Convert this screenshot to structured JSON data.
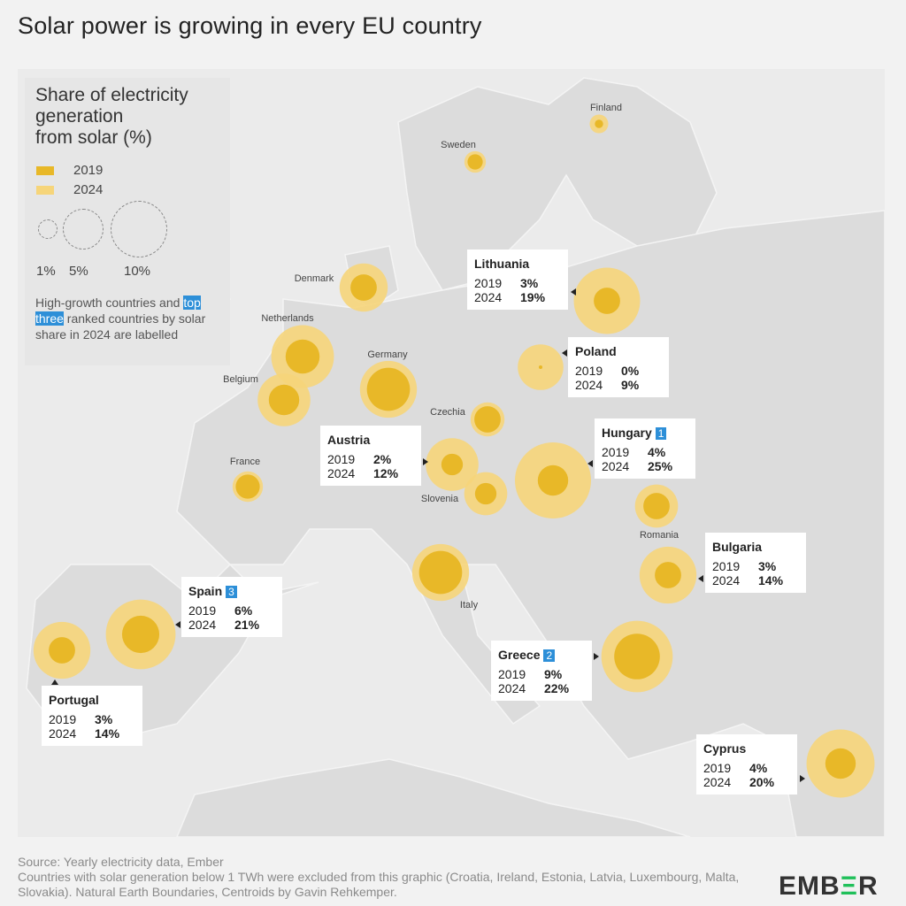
{
  "title": "Solar power is growing in every EU country",
  "legend": {
    "title_lines": [
      "Share of electricity",
      "generation",
      "from solar (%)"
    ],
    "year_2019": "2019",
    "year_2024": "2024",
    "size_labels": [
      "1%",
      "5%",
      "10%"
    ],
    "note_pre": "High-growth countries and",
    "note_highlight": "top three",
    "note_post": " ranked countries by solar share in 2024 are labelled"
  },
  "colors": {
    "c2019": "#e8b828",
    "c2024": "#f6d57a",
    "highlight": "#2d8fd8"
  },
  "chart_data": {
    "type": "bubble-map",
    "title": "Share of electricity generation from solar (%)",
    "countries": [
      {
        "name": "Finland",
        "v2019": 0.3,
        "v2024": 1.5
      },
      {
        "name": "Sweden",
        "v2019": 1,
        "v2024": 2
      },
      {
        "name": "Denmark",
        "v2019": 3,
        "v2024": 10
      },
      {
        "name": "Netherlands",
        "v2019": 5,
        "v2024": 17
      },
      {
        "name": "Belgium",
        "v2019": 4,
        "v2024": 12
      },
      {
        "name": "Germany",
        "v2019": 8,
        "v2024": 14
      },
      {
        "name": "Czechia",
        "v2019": 3,
        "v2024": 5
      },
      {
        "name": "France",
        "v2019": 2.5,
        "v2024": 4
      },
      {
        "name": "Slovenia",
        "v2019": 2,
        "v2024": 8
      },
      {
        "name": "Romania",
        "v2019": 3,
        "v2024": 8
      },
      {
        "name": "Italy",
        "v2019": 8,
        "v2024": 14
      },
      {
        "name": "Lithuania",
        "v2019": 3,
        "v2024": 19,
        "label": true
      },
      {
        "name": "Poland",
        "v2019": 0,
        "v2024": 9,
        "label": true
      },
      {
        "name": "Hungary",
        "v2019": 4,
        "v2024": 25,
        "label": true,
        "rank": "1"
      },
      {
        "name": "Austria",
        "v2019": 2,
        "v2024": 12,
        "label": true
      },
      {
        "name": "Bulgaria",
        "v2019": 3,
        "v2024": 14,
        "label": true
      },
      {
        "name": "Spain",
        "v2019": 6,
        "v2024": 21,
        "label": true,
        "rank": "3"
      },
      {
        "name": "Portugal",
        "v2019": 3,
        "v2024": 14,
        "label": true
      },
      {
        "name": "Greece",
        "v2019": 9,
        "v2024": 22,
        "label": true,
        "rank": "2"
      },
      {
        "name": "Cyprus",
        "v2019": 4,
        "v2024": 20,
        "label": true
      }
    ]
  },
  "footer": {
    "source": "Source: Yearly electricity data, Ember",
    "note": "Countries with solar generation below 1 TWh were excluded from this graphic (Croatia, Ireland, Estonia, Latvia, Luxembourg, Malta, Slovakia). Natural Earth Boundaries, Centroids by Gavin Rehkemper.",
    "logo_a": "EMB",
    "logo_b": "Ξ",
    "logo_c": "R"
  }
}
